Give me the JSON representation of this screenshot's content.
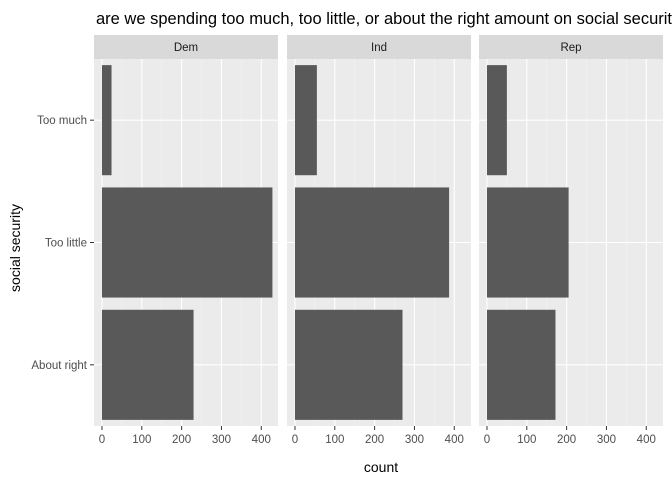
{
  "chart_data": {
    "type": "bar",
    "orientation": "horizontal",
    "title": "are we spending too much, too little, or about the right amount on social security?",
    "xlabel": "count",
    "ylabel": "social security",
    "categories": [
      "Too much",
      "Too little",
      "About right"
    ],
    "facets": [
      {
        "name": "Dem",
        "values": [
          24,
          428,
          230
        ]
      },
      {
        "name": "Ind",
        "values": [
          55,
          387,
          270
        ]
      },
      {
        "name": "Rep",
        "values": [
          50,
          205,
          172
        ]
      }
    ],
    "xlim": [
      -20,
      442
    ],
    "x_ticks": [
      0,
      100,
      200,
      300,
      400
    ],
    "bar_color": "#595959",
    "panel_background": "#ebebeb",
    "strip_background": "#d9d9d9",
    "grid": true,
    "legend": "none"
  }
}
